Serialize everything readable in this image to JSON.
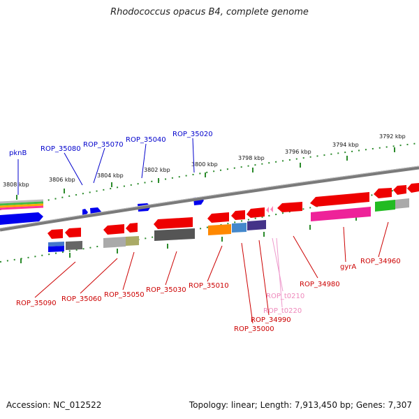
{
  "title": "Rhodococcus opacus B4, complete genome",
  "footer": {
    "accession": "Accession: NC_012522",
    "summary": "Topology: linear; Length: 7,913,450 bp; Genes: 7,307"
  },
  "ruler_labels": [
    "3808 kbp",
    "3806 kbp",
    "3804 kbp",
    "3802 kbp",
    "3800 kbp",
    "3798 kbp",
    "3796 kbp",
    "3794 kbp",
    "3792 kbp"
  ],
  "forward_gene_labels": [
    "pknB",
    "ROP_35080",
    "ROP_35070",
    "ROP_35040",
    "ROP_35020"
  ],
  "reverse_gene_labels": [
    "ROP_35090",
    "ROP_35060",
    "ROP_35050",
    "ROP_35030",
    "ROP_35010",
    "ROP_35000",
    "ROP_34990",
    "ROP_t0210",
    "ROP_t0220",
    "ROP_34980",
    "gyrA",
    "ROP_34960"
  ],
  "colors": {
    "forward_gene": "#0000ff",
    "reverse_gene": "#ff0000",
    "trna": "#ff88bb",
    "backbone": "#808080",
    "ruler": "#228822"
  }
}
